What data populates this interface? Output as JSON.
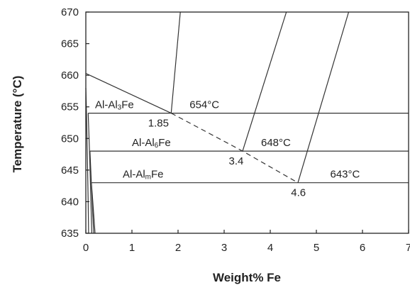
{
  "chart_data": {
    "type": "line",
    "xlabel": "Weight% Fe",
    "ylabel": "Temperature (°C)",
    "xlim": [
      0,
      7
    ],
    "ylim": [
      635,
      670
    ],
    "x_ticks": [
      "0",
      "1",
      "2",
      "3",
      "4",
      "5",
      "6",
      "7"
    ],
    "y_ticks": [
      "635",
      "640",
      "645",
      "650",
      "655",
      "660",
      "665",
      "670"
    ],
    "grid": false,
    "liquidus_metastable": {
      "style": "dashed",
      "points": [
        {
          "x": 1.85,
          "y": 654
        },
        {
          "x": 3.4,
          "y": 648
        },
        {
          "x": 4.6,
          "y": 643
        }
      ]
    },
    "liquidus_stable": {
      "style": "solid",
      "points": [
        {
          "x": 0,
          "y": 660.3
        },
        {
          "x": 1.85,
          "y": 654
        }
      ]
    },
    "primary_phase_boundaries": [
      {
        "points": [
          {
            "x": 1.85,
            "y": 654
          },
          {
            "x": 2.05,
            "y": 670
          }
        ]
      },
      {
        "points": [
          {
            "x": 3.4,
            "y": 648
          },
          {
            "x": 4.35,
            "y": 670
          }
        ]
      },
      {
        "points": [
          {
            "x": 4.6,
            "y": 643
          },
          {
            "x": 5.7,
            "y": 670
          }
        ]
      }
    ],
    "eutectic_lines": [
      {
        "y": 654,
        "x_from": 0.05,
        "x_to": 7
      },
      {
        "y": 648,
        "x_from": 0.09,
        "x_to": 7
      },
      {
        "y": 643,
        "x_from": 0.12,
        "x_to": 7
      }
    ],
    "solvus_curves": [
      {
        "points": [
          {
            "x": 0.0,
            "y": 658
          },
          {
            "x": 0.01,
            "y": 655
          },
          {
            "x": 0.03,
            "y": 648
          },
          {
            "x": 0.05,
            "y": 640
          },
          {
            "x": 0.06,
            "y": 635
          }
        ]
      },
      {
        "points": [
          {
            "x": 0.05,
            "y": 654
          },
          {
            "x": 0.08,
            "y": 648
          },
          {
            "x": 0.11,
            "y": 640
          },
          {
            "x": 0.13,
            "y": 635
          }
        ]
      },
      {
        "points": [
          {
            "x": 0.09,
            "y": 648
          },
          {
            "x": 0.12,
            "y": 643
          },
          {
            "x": 0.15,
            "y": 638
          },
          {
            "x": 0.17,
            "y": 635
          }
        ]
      },
      {
        "points": [
          {
            "x": 0.12,
            "y": 643
          },
          {
            "x": 0.15,
            "y": 640
          },
          {
            "x": 0.18,
            "y": 637
          },
          {
            "x": 0.2,
            "y": 635
          }
        ]
      }
    ],
    "annotations": {
      "eutectic_al3fe": {
        "main": "Al-Al",
        "sub": "3",
        "tail": "Fe",
        "x": 0.2,
        "y": 654.8
      },
      "eutectic_al6fe": {
        "main": "Al-Al",
        "sub": "6",
        "tail": "Fe",
        "x": 1.0,
        "y": 648.8
      },
      "eutectic_almfe": {
        "main": "Al-Al",
        "sub": "m",
        "tail": "Fe",
        "x": 0.8,
        "y": 643.8
      },
      "temp_654": {
        "text": "654°C",
        "x": 2.25,
        "y": 654.8
      },
      "temp_648": {
        "text": "648°C",
        "x": 3.8,
        "y": 648.8
      },
      "temp_643": {
        "text": "643°C",
        "x": 5.3,
        "y": 643.8
      },
      "comp_185": {
        "text": "1.85",
        "x": 1.35,
        "y": 651.9
      },
      "comp_34": {
        "text": "3.4",
        "x": 3.1,
        "y": 645.9
      },
      "comp_46": {
        "text": "4.6",
        "x": 4.45,
        "y": 640.9
      }
    }
  }
}
